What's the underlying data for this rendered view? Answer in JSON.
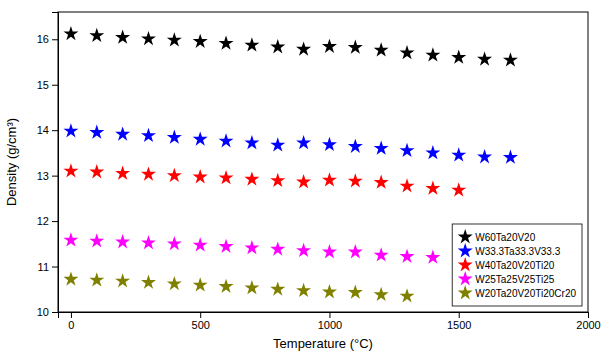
{
  "chart_data": {
    "type": "scatter",
    "xlabel": "Temperature (°C)",
    "ylabel": "Density (g/cm³)",
    "xlim": [
      -50,
      2000
    ],
    "ylim": [
      10,
      16.6
    ],
    "xticks": [
      0,
      500,
      1000,
      1500,
      2000
    ],
    "yticks": [
      10,
      11,
      12,
      13,
      14,
      15,
      16
    ],
    "marker": "star",
    "legend": "lower right",
    "grid": false,
    "series": [
      {
        "name": "W60Ta20V20",
        "color": "#000000",
        "x": [
          0,
          100,
          200,
          300,
          400,
          500,
          600,
          700,
          800,
          900,
          1000,
          1100,
          1200,
          1300,
          1400,
          1500,
          1600,
          1700
        ],
        "values": [
          16.12,
          16.08,
          16.04,
          16.01,
          15.98,
          15.95,
          15.91,
          15.87,
          15.83,
          15.78,
          15.84,
          15.82,
          15.76,
          15.7,
          15.65,
          15.6,
          15.56,
          15.54
        ]
      },
      {
        "name": "W33.3Ta33.3V33.3",
        "color": "#0000ff",
        "x": [
          0,
          100,
          200,
          300,
          400,
          500,
          600,
          700,
          800,
          900,
          1000,
          1100,
          1200,
          1300,
          1400,
          1500,
          1600,
          1700
        ],
        "values": [
          13.98,
          13.95,
          13.91,
          13.88,
          13.84,
          13.8,
          13.76,
          13.72,
          13.67,
          13.72,
          13.68,
          13.64,
          13.6,
          13.55,
          13.5,
          13.45,
          13.41,
          13.4
        ]
      },
      {
        "name": "W40Ta20V20Ti20",
        "color": "#ff0000",
        "x": [
          0,
          100,
          200,
          300,
          400,
          500,
          600,
          700,
          800,
          900,
          1000,
          1100,
          1200,
          1300,
          1400,
          1500
        ],
        "values": [
          13.1,
          13.08,
          13.05,
          13.03,
          13.0,
          12.97,
          12.95,
          12.92,
          12.89,
          12.86,
          12.9,
          12.88,
          12.85,
          12.77,
          12.72,
          12.68
        ]
      },
      {
        "name": "W25Ta25V25Ti25",
        "color": "#ff00ff",
        "x": [
          0,
          100,
          200,
          300,
          400,
          500,
          600,
          700,
          800,
          900,
          1000,
          1100,
          1200,
          1300,
          1400
        ],
        "values": [
          11.58,
          11.56,
          11.54,
          11.52,
          11.5,
          11.47,
          11.44,
          11.41,
          11.38,
          11.35,
          11.32,
          11.32,
          11.25,
          11.22,
          11.2
        ]
      },
      {
        "name": "W20Ta20V20Ti20Cr20",
        "color": "#808000",
        "x": [
          0,
          100,
          200,
          300,
          400,
          500,
          600,
          700,
          800,
          900,
          1000,
          1100,
          1200,
          1300
        ],
        "values": [
          10.72,
          10.7,
          10.68,
          10.65,
          10.62,
          10.59,
          10.56,
          10.53,
          10.5,
          10.47,
          10.44,
          10.43,
          10.38,
          10.35
        ]
      }
    ]
  }
}
